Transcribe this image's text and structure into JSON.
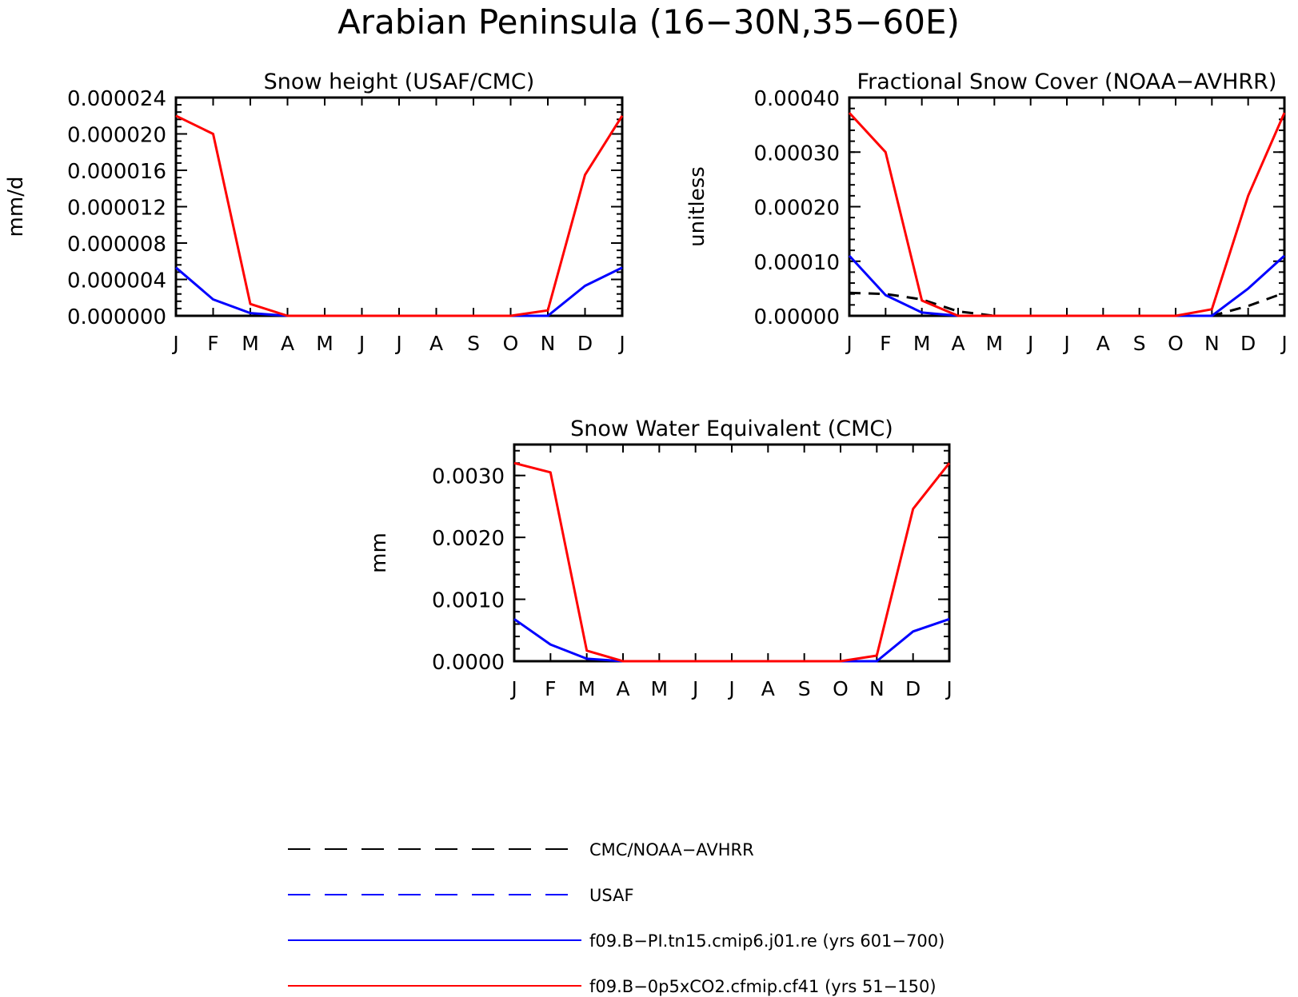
{
  "figure": {
    "title": "Arabian Peninsula (16−30N,35−60E)"
  },
  "chart_data": [
    {
      "type": "line",
      "title": "Snow height (USAF/CMC)",
      "xlabel": "",
      "ylabel": "mm/d",
      "categories": [
        "J",
        "F",
        "M",
        "A",
        "M",
        "J",
        "J",
        "A",
        "S",
        "O",
        "N",
        "D",
        "J"
      ],
      "ylim": [
        0,
        2.4e-05
      ],
      "yticks": [
        "0.000000",
        "0.000004",
        "0.000008",
        "0.000012",
        "0.000016",
        "0.000020",
        "0.000024"
      ],
      "grid": false,
      "series": [
        {
          "name": "f09.B−PI.tn15.cmip6.j01.re (yrs 601−700)",
          "color": "#0000ff",
          "style": "solid",
          "values": [
            5.3e-06,
            1.8e-06,
            3e-07,
            0,
            0,
            0,
            0,
            0,
            0,
            0,
            0,
            3.3e-06,
            5.3e-06
          ]
        },
        {
          "name": "f09.B−0p5xCO2.cfmip.cf41 (yrs 51−150)",
          "color": "#ff0000",
          "style": "solid",
          "values": [
            2.2e-05,
            2e-05,
            1.3e-06,
            0,
            0,
            0,
            0,
            0,
            0,
            0,
            6e-07,
            1.55e-05,
            2.2e-05
          ]
        },
        {
          "name": "CMC/NOAA−AVHRR",
          "color": "#000000",
          "style": "dashed",
          "values": [
            0,
            0,
            0,
            0,
            0,
            0,
            0,
            0,
            0,
            0,
            0,
            0,
            0
          ]
        }
      ]
    },
    {
      "type": "line",
      "title": "Fractional Snow Cover (NOAA−AVHRR)",
      "xlabel": "",
      "ylabel": "unitless",
      "categories": [
        "J",
        "F",
        "M",
        "A",
        "M",
        "J",
        "J",
        "A",
        "S",
        "O",
        "N",
        "D",
        "J"
      ],
      "ylim": [
        0,
        0.0004
      ],
      "yticks": [
        "0.00000",
        "0.00010",
        "0.00020",
        "0.00030",
        "0.00040"
      ],
      "grid": false,
      "series": [
        {
          "name": "f09.B−PI.tn15.cmip6.j01.re (yrs 601−700)",
          "color": "#0000ff",
          "style": "solid",
          "values": [
            0.00011,
            3.8e-05,
            6e-06,
            0,
            0,
            0,
            0,
            0,
            0,
            0,
            0,
            5e-05,
            0.00011
          ]
        },
        {
          "name": "f09.B−0p5xCO2.cfmip.cf41 (yrs 51−150)",
          "color": "#ff0000",
          "style": "solid",
          "values": [
            0.000372,
            0.0003,
            2.8e-05,
            0,
            0,
            0,
            0,
            0,
            0,
            0,
            1.2e-05,
            0.00022,
            0.000372
          ]
        },
        {
          "name": "CMC/NOAA−AVHRR",
          "color": "#000000",
          "style": "dashed",
          "values": [
            4.2e-05,
            4e-05,
            3e-05,
            8e-06,
            0,
            0,
            0,
            0,
            0,
            0,
            0,
            1.8e-05,
            4.2e-05
          ]
        }
      ]
    },
    {
      "type": "line",
      "title": "Snow Water Equivalent (CMC)",
      "xlabel": "",
      "ylabel": "mm",
      "categories": [
        "J",
        "F",
        "M",
        "A",
        "M",
        "J",
        "J",
        "A",
        "S",
        "O",
        "N",
        "D",
        "J"
      ],
      "ylim": [
        0,
        0.0035
      ],
      "yticks": [
        "0.0000",
        "0.0010",
        "0.0020",
        "0.0030"
      ],
      "grid": false,
      "series": [
        {
          "name": "f09.B−PI.tn15.cmip6.j01.re (yrs 601−700)",
          "color": "#0000ff",
          "style": "solid",
          "values": [
            0.00068,
            0.00027,
            4e-05,
            0,
            0,
            0,
            0,
            0,
            0,
            0,
            0,
            0.00048,
            0.00068
          ]
        },
        {
          "name": "f09.B−0p5xCO2.cfmip.cf41 (yrs 51−150)",
          "color": "#ff0000",
          "style": "solid",
          "values": [
            0.0032,
            0.00305,
            0.00017,
            0,
            0,
            0,
            0,
            0,
            0,
            0,
            9e-05,
            0.00246,
            0.0032
          ]
        },
        {
          "name": "CMC/NOAA−AVHRR",
          "color": "#000000",
          "style": "dashed",
          "values": [
            0,
            0,
            0,
            0,
            0,
            0,
            0,
            0,
            0,
            0,
            0,
            0,
            0
          ]
        }
      ]
    }
  ],
  "legend": {
    "placement": "bottom-center",
    "items": [
      {
        "label": "CMC/NOAA−AVHRR",
        "color": "#000000",
        "style": "long-dash"
      },
      {
        "label": "USAF",
        "color": "#0000ff",
        "style": "long-dash"
      },
      {
        "label": "f09.B−PI.tn15.cmip6.j01.re (yrs 601−700)",
        "color": "#0000ff",
        "style": "solid"
      },
      {
        "label": "f09.B−0p5xCO2.cfmip.cf41 (yrs 51−150)",
        "color": "#ff0000",
        "style": "solid"
      }
    ]
  }
}
